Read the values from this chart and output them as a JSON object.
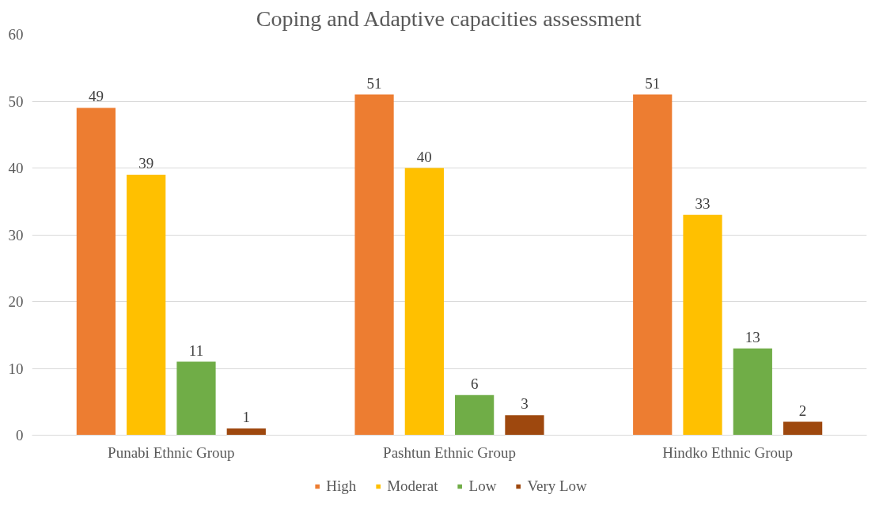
{
  "chart_data": {
    "type": "bar",
    "title": "Coping and Adaptive capacities assessment",
    "categories": [
      "Punabi Ethnic Group",
      "Pashtun Ethnic Group",
      "Hindko Ethnic Group"
    ],
    "series": [
      {
        "name": "High",
        "color": "#ed7d31",
        "values": [
          49,
          51,
          51
        ]
      },
      {
        "name": "Moderat",
        "color": "#ffc000",
        "values": [
          39,
          40,
          33
        ]
      },
      {
        "name": "Low",
        "color": "#70ad47",
        "values": [
          11,
          6,
          13
        ]
      },
      {
        "name": "Very Low",
        "color": "#9e480e",
        "values": [
          1,
          3,
          2
        ]
      }
    ],
    "ylim": [
      0,
      60
    ],
    "yticks": [
      0,
      10,
      20,
      30,
      40,
      50,
      60
    ],
    "grid": "y",
    "legend": "bottom",
    "data_labels": true
  }
}
